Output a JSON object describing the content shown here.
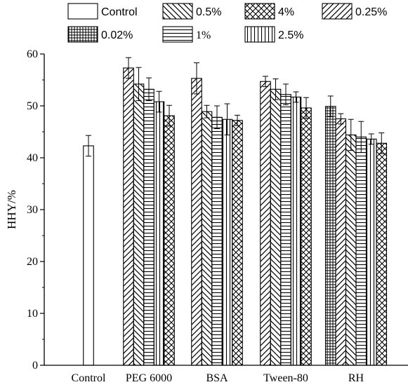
{
  "chart_data": {
    "type": "bar",
    "ylabel": "HHY/%",
    "ylim": [
      0,
      60
    ],
    "yticks": [
      0,
      10,
      20,
      30,
      40,
      50,
      60
    ],
    "grid": false,
    "legend_position": "top",
    "categories": [
      "Control",
      "PEG 6000",
      "BSA",
      "Tween-80",
      "RH"
    ],
    "series": [
      {
        "name": "Control",
        "pattern": "blank",
        "values": [
          42.3,
          null,
          null,
          null,
          null
        ],
        "errors": [
          2.0,
          null,
          null,
          null,
          null
        ]
      },
      {
        "name": "0.02%",
        "pattern": "grid",
        "values": [
          null,
          null,
          null,
          null,
          49.9
        ],
        "errors": [
          null,
          null,
          null,
          null,
          2.0
        ]
      },
      {
        "name": "0.25%",
        "pattern": "forward-diag",
        "values": [
          null,
          57.3,
          55.3,
          54.7,
          47.5
        ],
        "errors": [
          null,
          2.0,
          3.0,
          1.0,
          1.0
        ]
      },
      {
        "name": "0.5%",
        "pattern": "back-diag",
        "values": [
          null,
          54.2,
          48.9,
          53.2,
          44.4
        ],
        "errors": [
          null,
          3.2,
          1.2,
          2.0,
          3.0
        ]
      },
      {
        "name": "1%",
        "pattern": "horizontal",
        "values": [
          null,
          53.2,
          47.8,
          52.2,
          44.0
        ],
        "errors": [
          null,
          2.2,
          2.2,
          2.0,
          3.0
        ]
      },
      {
        "name": "2.5%",
        "pattern": "vertical",
        "values": [
          null,
          50.8,
          47.4,
          51.7,
          43.6
        ],
        "errors": [
          null,
          2.0,
          3.0,
          1.0,
          1.0
        ]
      },
      {
        "name": "4%",
        "pattern": "crosshatch",
        "values": [
          null,
          48.1,
          47.2,
          49.6,
          42.8
        ],
        "errors": [
          null,
          2.0,
          1.0,
          2.0,
          2.0
        ]
      }
    ],
    "legend": [
      {
        "name": "Control",
        "pattern": "blank",
        "font": "sans"
      },
      {
        "name": "0.5%",
        "pattern": "back-diag",
        "font": "sans"
      },
      {
        "name": "4%",
        "pattern": "crosshatch",
        "font": "sans"
      },
      {
        "name": "0.25%",
        "pattern": "forward-diag",
        "font": "sans"
      },
      {
        "name": "0.02%",
        "pattern": "grid",
        "font": "sans"
      },
      {
        "name": "1%",
        "pattern": "horizontal",
        "font": "serif"
      },
      {
        "name": "2.5%",
        "pattern": "vertical",
        "font": "sans"
      }
    ]
  }
}
